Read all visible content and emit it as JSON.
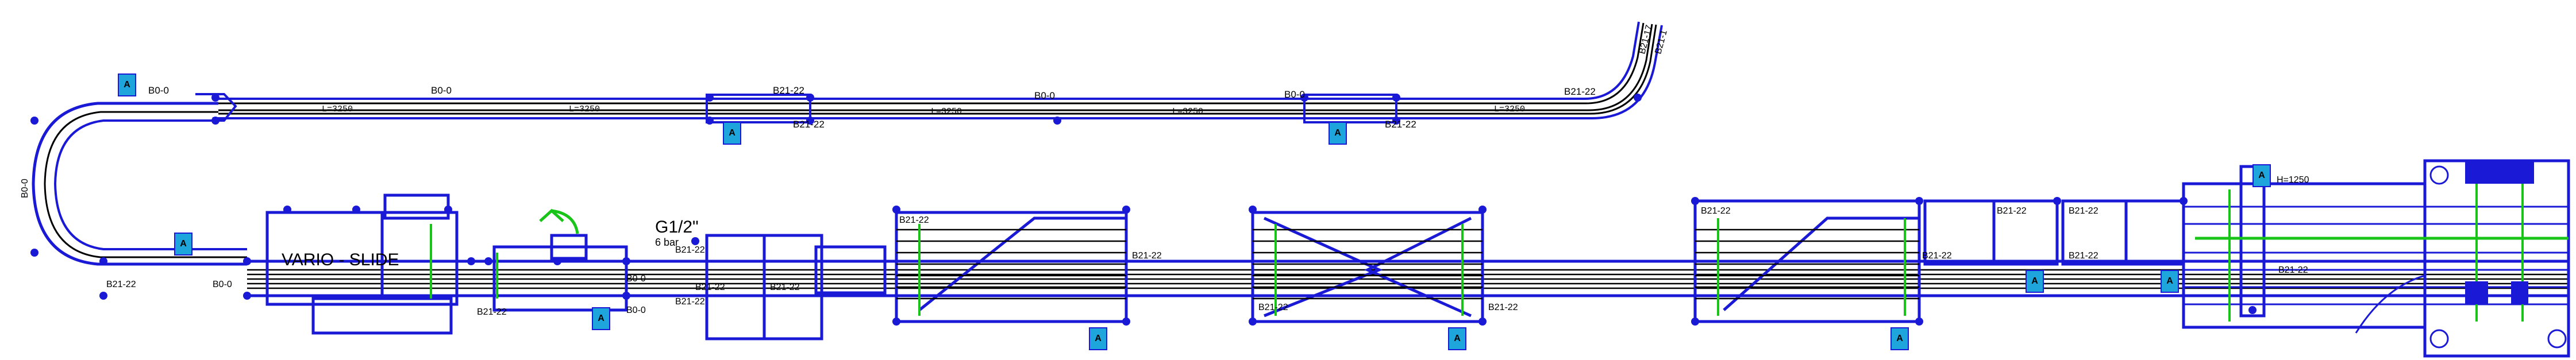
{
  "drawing": {
    "colors": {
      "frame": "#1a1ad6",
      "conveyor": "#000000",
      "sensor_bg": "#1ea5dc",
      "marker": "#18c418",
      "background": "#ffffff"
    },
    "top_labels": [
      "B0-0",
      "B0-0",
      "B21-22",
      "B0-0",
      "B0-0",
      "B21-22",
      "B21-22",
      "B21-22"
    ],
    "top_lengths": [
      "L=3250",
      "L=3250",
      "L=3250",
      "L=3250",
      "L=3250"
    ],
    "vertical_labels": [
      "B21-17",
      "B21-1"
    ],
    "left_labels": [
      "B0-0",
      "B21-22",
      "B0-0"
    ],
    "station": {
      "name": "VARIO - SLIDE",
      "pressure_size": "G1/2\"",
      "pressure_value": "6 bar"
    },
    "zone_labels": [
      "B21-22",
      "B0-0",
      "B0-0",
      "B21-22",
      "B21-22",
      "B21-22",
      "B21-22"
    ],
    "merge_labels": [
      "B21-22",
      "B21-22",
      "B21-22",
      "B21-22",
      "B21-22",
      "B21-22"
    ],
    "module_labels": [
      "B21-22",
      "B21-22",
      "B21-22",
      "B21-22"
    ],
    "dimension": "H=1250",
    "sensor_symbol": "A"
  }
}
